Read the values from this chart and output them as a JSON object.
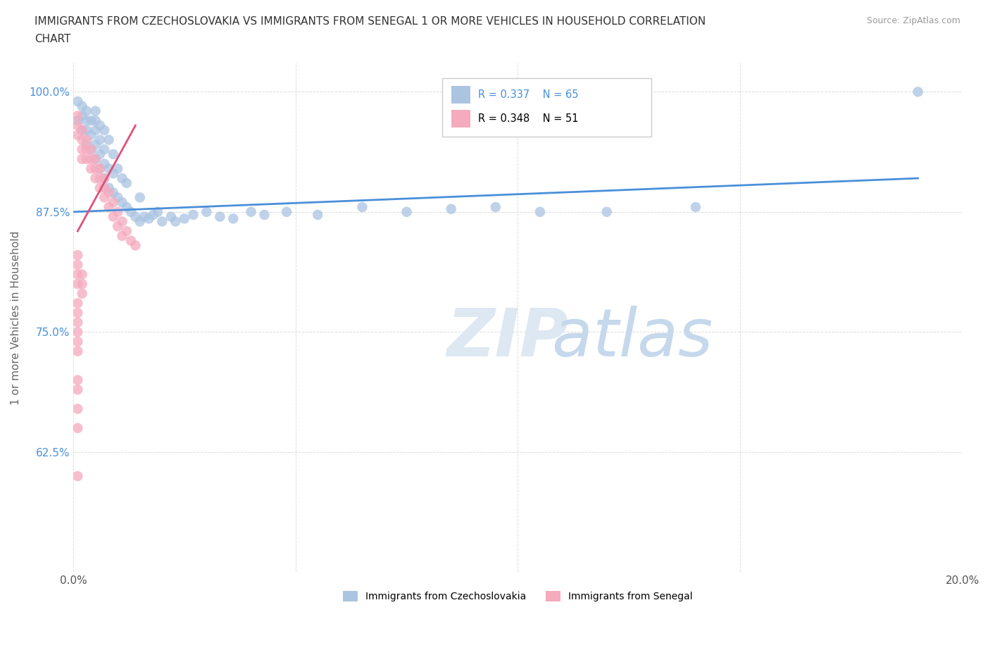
{
  "title_line1": "IMMIGRANTS FROM CZECHOSLOVAKIA VS IMMIGRANTS FROM SENEGAL 1 OR MORE VEHICLES IN HOUSEHOLD CORRELATION",
  "title_line2": "CHART",
  "source": "Source: ZipAtlas.com",
  "ylabel": "1 or more Vehicles in Household",
  "xlim": [
    0.0,
    0.2
  ],
  "ylim": [
    0.5,
    1.03
  ],
  "x_ticks": [
    0.0,
    0.05,
    0.1,
    0.15,
    0.2
  ],
  "x_tick_labels": [
    "0.0%",
    "",
    "",
    "",
    "20.0%"
  ],
  "y_ticks": [
    0.625,
    0.75,
    0.875,
    1.0
  ],
  "y_tick_labels": [
    "62.5%",
    "75.0%",
    "87.5%",
    "100.0%"
  ],
  "legend_r_czech": "R = 0.337",
  "legend_n_czech": "N = 65",
  "legend_r_senegal": "R = 0.348",
  "legend_n_senegal": "N = 51",
  "color_czech": "#aac4e2",
  "color_senegal": "#f5aabe",
  "line_color_czech": "#4a90d9",
  "line_color_senegal": "#e0507a",
  "czech_x": [
    0.001,
    0.001,
    0.002,
    0.002,
    0.002,
    0.003,
    0.003,
    0.003,
    0.003,
    0.004,
    0.004,
    0.004,
    0.005,
    0.005,
    0.005,
    0.005,
    0.005,
    0.006,
    0.006,
    0.006,
    0.006,
    0.007,
    0.007,
    0.007,
    0.007,
    0.008,
    0.008,
    0.008,
    0.009,
    0.009,
    0.009,
    0.01,
    0.01,
    0.011,
    0.011,
    0.012,
    0.012,
    0.013,
    0.014,
    0.015,
    0.015,
    0.016,
    0.017,
    0.018,
    0.019,
    0.02,
    0.022,
    0.023,
    0.025,
    0.027,
    0.03,
    0.033,
    0.036,
    0.04,
    0.043,
    0.048,
    0.055,
    0.065,
    0.075,
    0.085,
    0.095,
    0.105,
    0.12,
    0.14,
    0.19
  ],
  "czech_y": [
    0.97,
    0.99,
    0.96,
    0.975,
    0.985,
    0.945,
    0.96,
    0.97,
    0.98,
    0.94,
    0.955,
    0.97,
    0.93,
    0.945,
    0.96,
    0.97,
    0.98,
    0.92,
    0.935,
    0.95,
    0.965,
    0.91,
    0.925,
    0.94,
    0.96,
    0.9,
    0.92,
    0.95,
    0.895,
    0.915,
    0.935,
    0.89,
    0.92,
    0.885,
    0.91,
    0.88,
    0.905,
    0.875,
    0.87,
    0.865,
    0.89,
    0.87,
    0.868,
    0.872,
    0.875,
    0.865,
    0.87,
    0.865,
    0.868,
    0.872,
    0.875,
    0.87,
    0.868,
    0.875,
    0.872,
    0.875,
    0.872,
    0.88,
    0.875,
    0.878,
    0.88,
    0.875,
    0.875,
    0.88,
    1.0
  ],
  "senegal_x": [
    0.001,
    0.001,
    0.001,
    0.002,
    0.002,
    0.002,
    0.002,
    0.003,
    0.003,
    0.003,
    0.004,
    0.004,
    0.004,
    0.005,
    0.005,
    0.005,
    0.006,
    0.006,
    0.006,
    0.007,
    0.007,
    0.007,
    0.008,
    0.008,
    0.009,
    0.009,
    0.01,
    0.01,
    0.011,
    0.011,
    0.012,
    0.013,
    0.014,
    0.001,
    0.001,
    0.001,
    0.001,
    0.002,
    0.002,
    0.002,
    0.001,
    0.001,
    0.001,
    0.001,
    0.001,
    0.001,
    0.001,
    0.001,
    0.001,
    0.001,
    0.001
  ],
  "senegal_y": [
    0.975,
    0.965,
    0.955,
    0.96,
    0.95,
    0.94,
    0.93,
    0.95,
    0.94,
    0.93,
    0.94,
    0.93,
    0.92,
    0.93,
    0.92,
    0.91,
    0.92,
    0.91,
    0.9,
    0.91,
    0.9,
    0.89,
    0.895,
    0.88,
    0.885,
    0.87,
    0.875,
    0.86,
    0.865,
    0.85,
    0.855,
    0.845,
    0.84,
    0.83,
    0.82,
    0.81,
    0.8,
    0.81,
    0.8,
    0.79,
    0.78,
    0.77,
    0.76,
    0.75,
    0.74,
    0.73,
    0.7,
    0.69,
    0.67,
    0.65,
    0.6
  ]
}
